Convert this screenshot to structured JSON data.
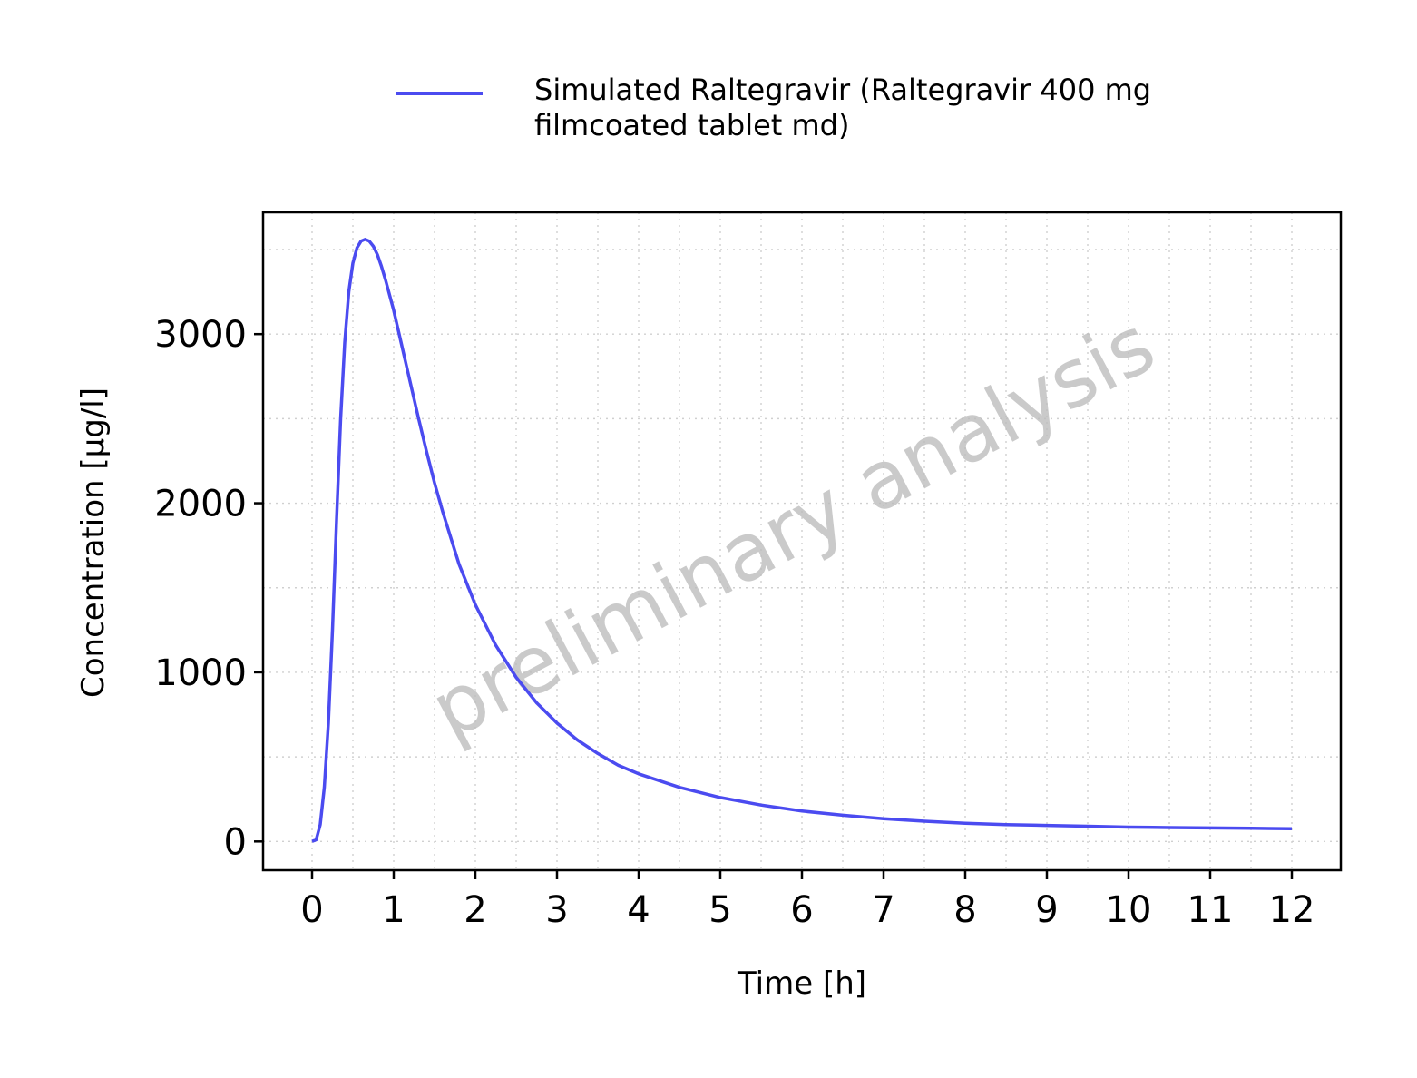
{
  "chart_data": {
    "type": "line",
    "xlabel": "Time [h]",
    "ylabel": "Concentration [µg/l]",
    "xlim": [
      -0.6,
      12.6
    ],
    "ylim": [
      -170,
      3720
    ],
    "x_ticks": [
      0,
      1,
      2,
      3,
      4,
      5,
      6,
      7,
      8,
      9,
      10,
      11,
      12
    ],
    "y_ticks": [
      0,
      1000,
      2000,
      3000
    ],
    "grid": true,
    "legend_position": "top",
    "watermark": "preliminary analysis",
    "series": [
      {
        "name": "Simulated Raltegravir (Raltegravir 400 mg filmcoated tablet md)",
        "color": "#4b4bf0",
        "x": [
          0,
          0.05,
          0.1,
          0.15,
          0.2,
          0.25,
          0.3,
          0.35,
          0.4,
          0.45,
          0.5,
          0.55,
          0.6,
          0.65,
          0.7,
          0.75,
          0.8,
          0.85,
          0.9,
          1.0,
          1.1,
          1.2,
          1.3,
          1.4,
          1.5,
          1.6,
          1.8,
          2.0,
          2.25,
          2.5,
          2.75,
          3.0,
          3.25,
          3.5,
          3.75,
          4.0,
          4.5,
          5.0,
          5.5,
          6.0,
          6.5,
          7.0,
          7.5,
          8.0,
          8.5,
          9.0,
          9.5,
          10.0,
          10.5,
          11.0,
          11.5,
          12.0
        ],
        "y": [
          0,
          10,
          100,
          320,
          700,
          1250,
          1900,
          2500,
          2950,
          3250,
          3420,
          3510,
          3550,
          3560,
          3550,
          3520,
          3470,
          3400,
          3320,
          3140,
          2930,
          2720,
          2510,
          2310,
          2120,
          1950,
          1640,
          1400,
          1160,
          970,
          820,
          700,
          600,
          520,
          450,
          400,
          320,
          260,
          215,
          180,
          155,
          135,
          120,
          108,
          100,
          95,
          90,
          85,
          82,
          80,
          78,
          76
        ]
      }
    ]
  }
}
